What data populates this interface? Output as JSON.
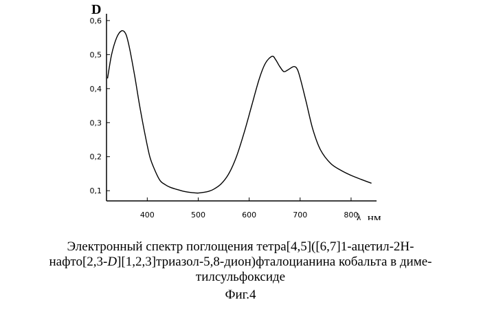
{
  "chart_data": {
    "type": "line",
    "ylabel": "D",
    "xlabel": "λ, нм",
    "xlim": [
      320,
      850
    ],
    "ylim": [
      0.07,
      0.62
    ],
    "x_ticks": [
      400,
      500,
      600,
      700,
      800
    ],
    "y_ticks": [
      "0,1",
      "0,2",
      "0,3",
      "0,4",
      "0,5",
      "0,6"
    ],
    "grid": false,
    "series": [
      {
        "x": [
          322,
          330,
          340,
          350,
          358,
          365,
          375,
          385,
          395,
          405,
          415,
          425,
          435,
          445,
          460,
          475,
          490,
          500,
          510,
          520,
          530,
          545,
          560,
          575,
          590,
          605,
          620,
          632,
          645,
          652,
          660,
          668,
          676,
          688,
          695,
          702,
          712,
          725,
          740,
          760,
          780,
          800,
          820,
          840
        ],
        "y": [
          0.43,
          0.5,
          0.55,
          0.57,
          0.56,
          0.52,
          0.44,
          0.35,
          0.27,
          0.2,
          0.16,
          0.13,
          0.118,
          0.11,
          0.103,
          0.097,
          0.094,
          0.093,
          0.095,
          0.098,
          0.104,
          0.12,
          0.15,
          0.2,
          0.27,
          0.35,
          0.43,
          0.475,
          0.495,
          0.485,
          0.465,
          0.45,
          0.455,
          0.465,
          0.455,
          0.42,
          0.36,
          0.28,
          0.22,
          0.18,
          0.16,
          0.145,
          0.133,
          0.122
        ]
      }
    ]
  },
  "caption": {
    "line1": "Электронный спектр поглощения тетра[4,5]([6,7]1-ацетил-2H-",
    "line2_a": "нафто[2,3-",
    "line2_italic": "D",
    "line2_b": "][1,2,3]триазол-5,8-дион)фталоцианина кобальта в диме-",
    "line3": "тилсульфоксиде"
  },
  "figure_label": "Фиг.4"
}
